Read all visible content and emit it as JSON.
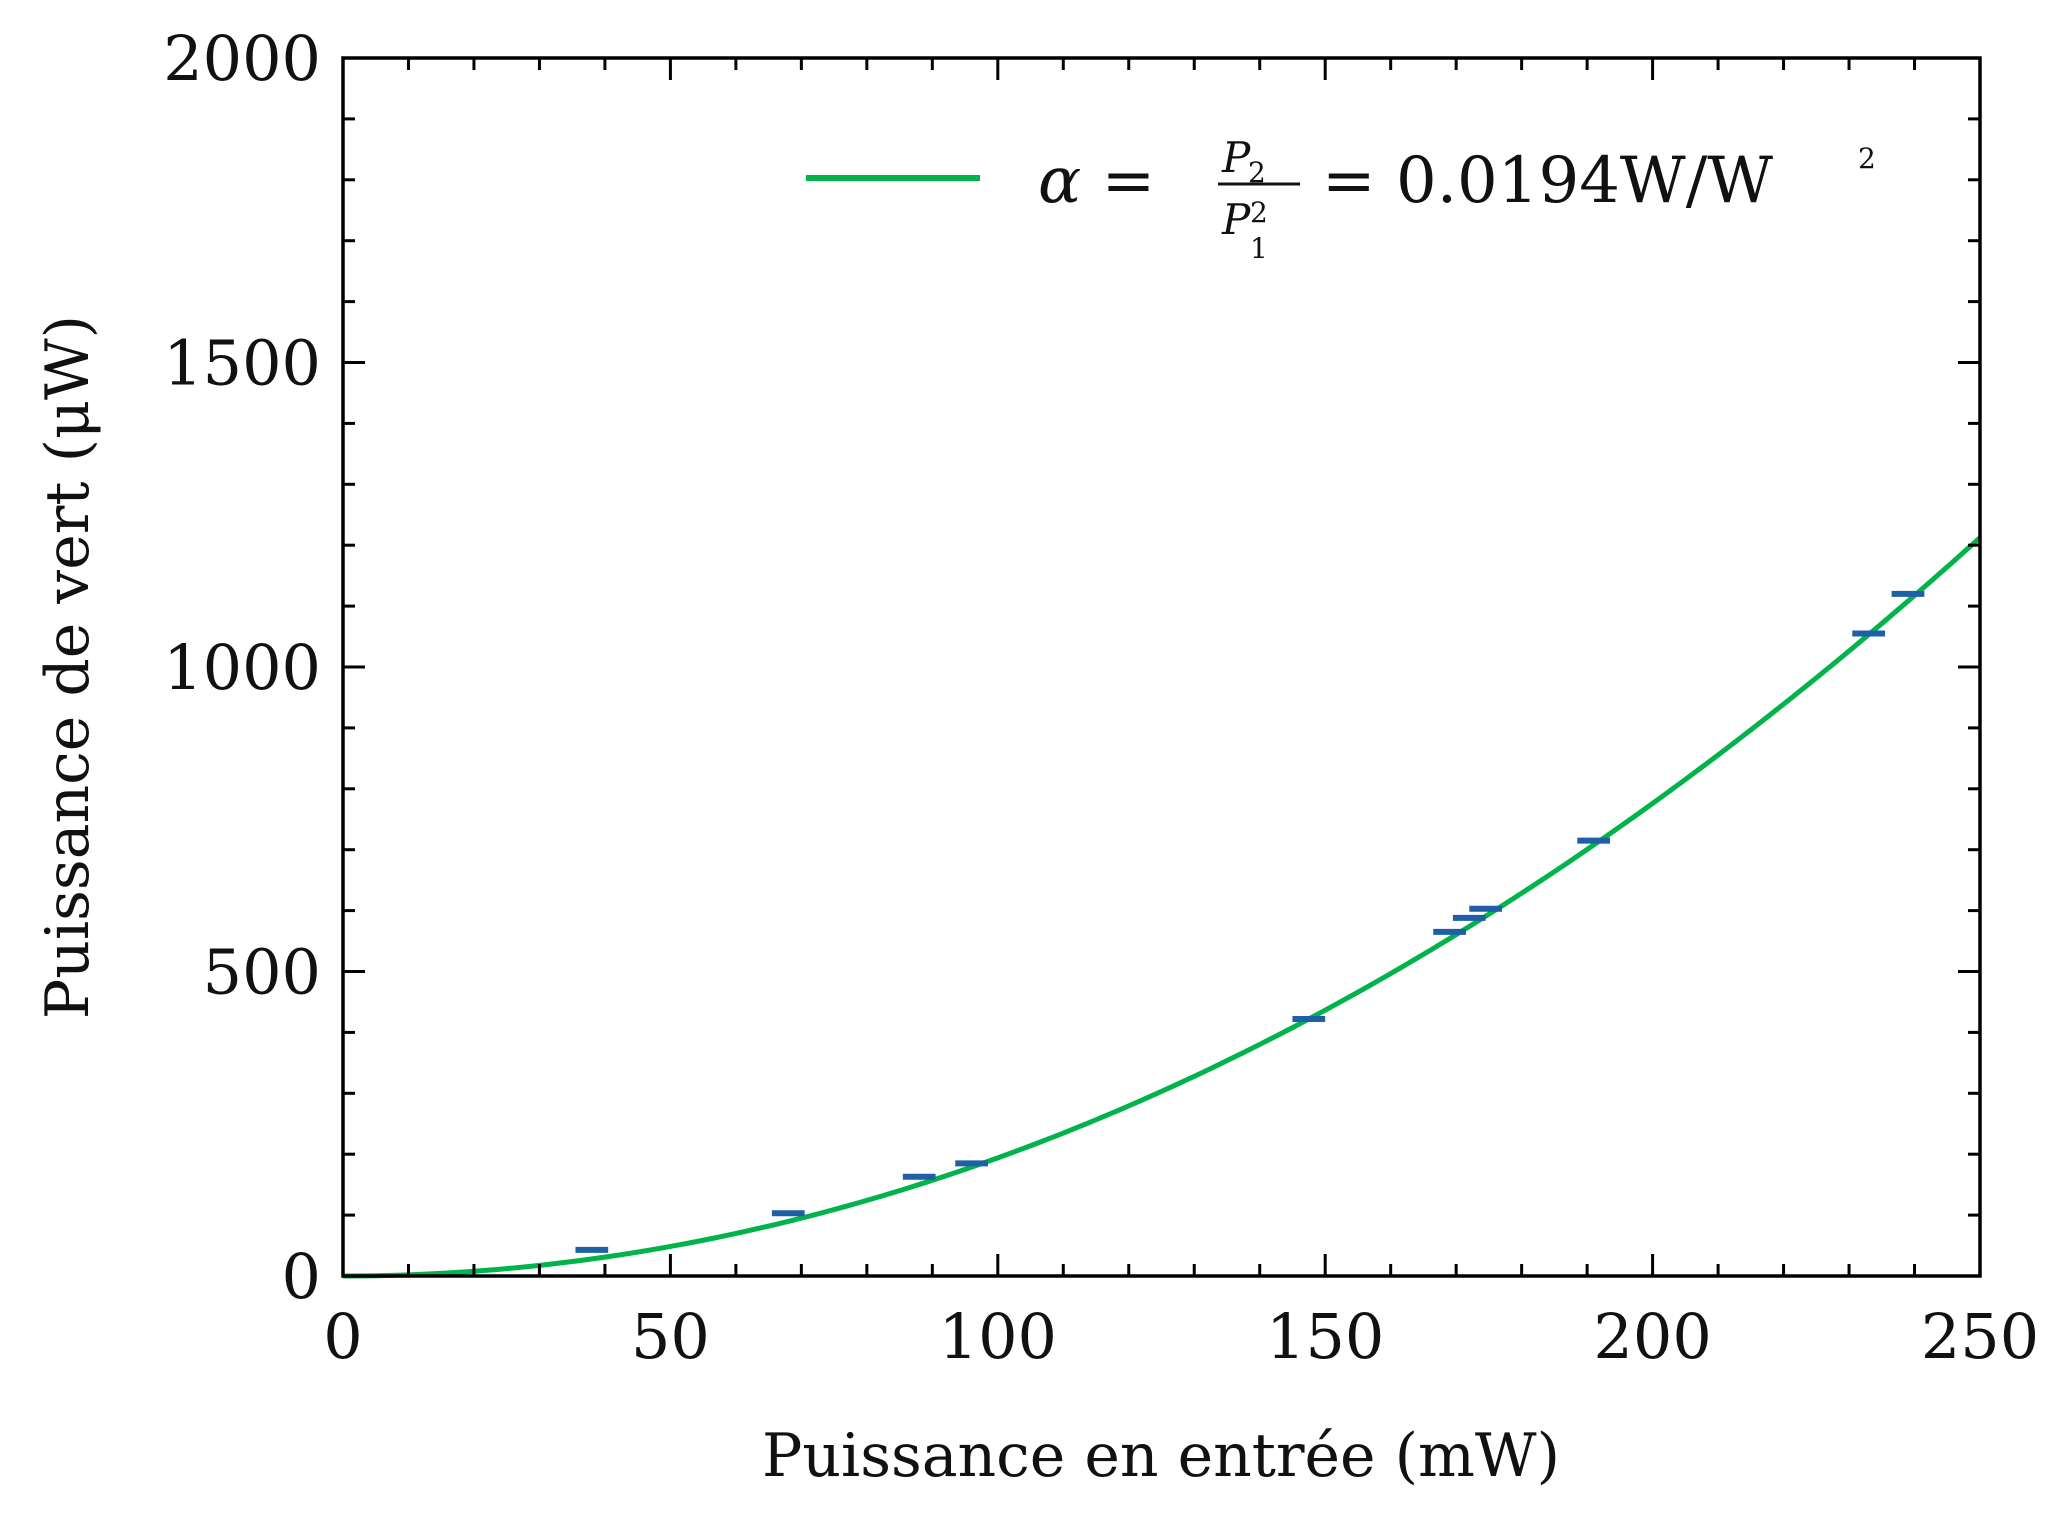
{
  "chart_data": {
    "type": "scatter",
    "xlabel": "Puissance en entrée (mW)",
    "ylabel": "Puissance de vert (μW)",
    "xlim": [
      0,
      250
    ],
    "ylim": [
      0,
      2000
    ],
    "x_ticks": [
      "0",
      "50",
      "100",
      "150",
      "200",
      "250"
    ],
    "y_ticks": [
      "0",
      "500",
      "1000",
      "1500",
      "2000"
    ],
    "grid": false,
    "legend_position": "top-right",
    "legend": {
      "lhs": "α =",
      "num": "P",
      "num_sub": "2",
      "den": "P",
      "den_sub": "1",
      "den_sup": "2",
      "rhs": "= 0.0194W/W",
      "rhs_sup": "2"
    },
    "series": [
      {
        "type": "errorbar",
        "color": "#1f5fa6",
        "x_err": 2.5,
        "points": [
          {
            "x": 38.0,
            "y": 43
          },
          {
            "x": 68.0,
            "y": 103
          },
          {
            "x": 88.0,
            "y": 163
          },
          {
            "x": 96.0,
            "y": 185
          },
          {
            "x": 147.5,
            "y": 422
          },
          {
            "x": 169.0,
            "y": 565
          },
          {
            "x": 172.0,
            "y": 588
          },
          {
            "x": 174.5,
            "y": 603
          },
          {
            "x": 191.0,
            "y": 715
          },
          {
            "x": 233.0,
            "y": 1055
          },
          {
            "x": 239.0,
            "y": 1120
          }
        ]
      },
      {
        "type": "line",
        "color": "#00b34a",
        "model": "y = 0.0194 * x^2",
        "coefficient": 0.0194,
        "x_range": [
          0,
          250
        ]
      }
    ]
  }
}
